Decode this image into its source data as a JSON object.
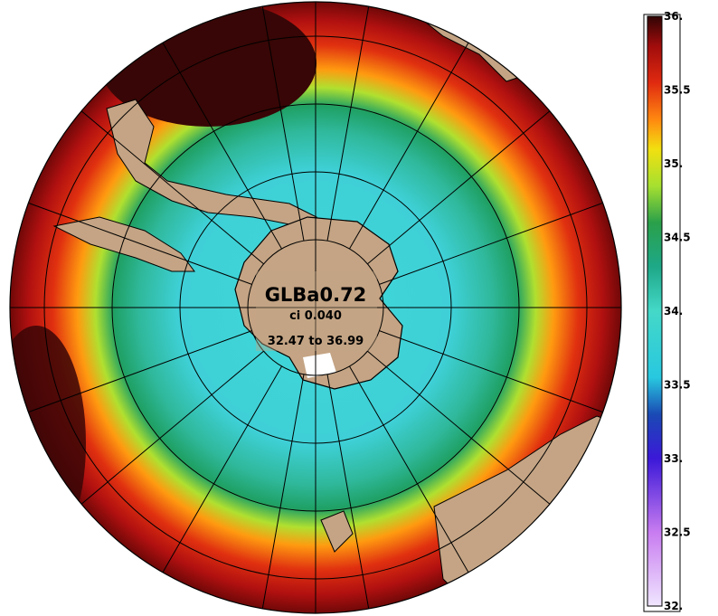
{
  "map": {
    "title": "GLBa0.72",
    "contour_interval": "ci 0.040",
    "range": "32.47 to 36.99",
    "projection": "south-polar-stereographic",
    "land_color": "#c4a484",
    "no_data_color": "#ffffff",
    "grid_color": "#000000"
  },
  "colorbar": {
    "min": 32.0,
    "max": 36.0,
    "ticks": [
      {
        "value": 36.0,
        "label": "36."
      },
      {
        "value": 35.5,
        "label": "35.5"
      },
      {
        "value": 35.0,
        "label": "35."
      },
      {
        "value": 34.5,
        "label": "34.5"
      },
      {
        "value": 34.0,
        "label": "34."
      },
      {
        "value": 33.5,
        "label": "33.5"
      },
      {
        "value": 33.0,
        "label": "33."
      },
      {
        "value": 32.5,
        "label": "32.5"
      },
      {
        "value": 32.0,
        "label": "32."
      }
    ],
    "stops": [
      {
        "value": 32.0,
        "color": "#f0e6ff"
      },
      {
        "value": 32.5,
        "color": "#c87cf0"
      },
      {
        "value": 33.0,
        "color": "#3b18d8"
      },
      {
        "value": 33.3,
        "color": "#1a4ab4"
      },
      {
        "value": 33.55,
        "color": "#28c8e0"
      },
      {
        "value": 34.0,
        "color": "#44d8c8"
      },
      {
        "value": 34.3,
        "color": "#1ea888"
      },
      {
        "value": 34.6,
        "color": "#2aa04a"
      },
      {
        "value": 34.85,
        "color": "#a6e030"
      },
      {
        "value": 35.1,
        "color": "#f2e010"
      },
      {
        "value": 35.3,
        "color": "#ff8810"
      },
      {
        "value": 35.55,
        "color": "#e02a10"
      },
      {
        "value": 35.8,
        "color": "#a00c0c"
      },
      {
        "value": 36.0,
        "color": "#300404"
      }
    ]
  }
}
